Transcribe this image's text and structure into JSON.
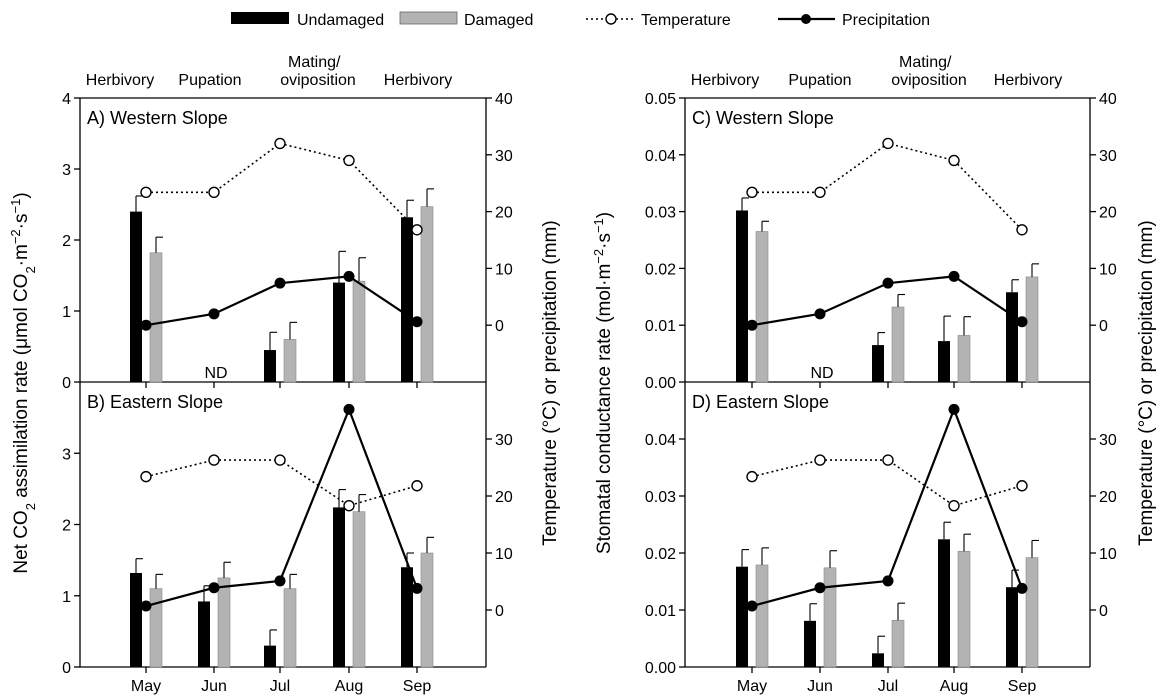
{
  "legend": {
    "undamaged": "Undamaged",
    "damaged": "Damaged",
    "temperature": "Temperature",
    "precipitation": "Precipitation"
  },
  "colors": {
    "undamaged": "#000000",
    "damaged": "#b3b3b3",
    "temperature_marker": "#ffffff",
    "precipitation_marker": "#000000"
  },
  "phases": [
    {
      "lines": [
        "Herbivory"
      ]
    },
    {
      "lines": [
        "Pupation"
      ]
    },
    {
      "lines": [
        "Mating/",
        "oviposition"
      ]
    },
    {
      "lines": [
        "Herbivory"
      ]
    }
  ],
  "nd_label": "ND",
  "left_column": {
    "ylabel": "Net CO2 assimilation rate (μmol CO2·m−2·s−1)",
    "ylabel_parts": [
      "Net CO",
      "2",
      " assimilation rate (μmol CO",
      "2",
      "·m",
      "−2",
      "·s",
      "−1",
      ")"
    ]
  },
  "right_column": {
    "ylabel": "Stomatal conductance rate (mol·m−2·s−1)",
    "ylabel_parts": [
      "Stomatal conductance rate (mol·m",
      "−2",
      "·s",
      "−1",
      ")"
    ]
  },
  "right_axis_label": "Temperature (°C) or precipitation (mm)",
  "chart_data": [
    {
      "type": "bar",
      "title": "A) Western Slope",
      "categories": [
        "May",
        "Jun",
        "Jul",
        "Aug",
        "Sep"
      ],
      "ylim": [
        0,
        4
      ],
      "yticks": [
        "0",
        "1",
        "2",
        "3",
        "4"
      ],
      "y2lim": [
        -10,
        40
      ],
      "y2ticks": [
        "0",
        "10",
        "20",
        "30",
        "40"
      ],
      "series": [
        {
          "name": "Undamaged",
          "values": [
            2.4,
            null,
            0.45,
            1.4,
            2.32
          ],
          "errors": [
            0.22,
            null,
            0.25,
            0.44,
            0.24
          ]
        },
        {
          "name": "Damaged",
          "values": [
            1.82,
            null,
            0.6,
            1.42,
            2.47
          ],
          "errors": [
            0.22,
            null,
            0.24,
            0.33,
            0.25
          ]
        },
        {
          "name": "Temperature",
          "values": [
            23.4,
            23.4,
            32.0,
            29.0,
            16.8
          ]
        },
        {
          "name": "Precipitation",
          "values": [
            0.0,
            2.0,
            7.4,
            8.6,
            0.6
          ]
        }
      ],
      "nd": [
        false,
        true,
        false,
        false,
        false
      ]
    },
    {
      "type": "bar",
      "title": "B) Eastern Slope",
      "categories": [
        "May",
        "Jun",
        "Jul",
        "Aug",
        "Sep"
      ],
      "ylim": [
        0,
        4
      ],
      "yticks": [
        "0",
        "1",
        "2",
        "3"
      ],
      "y2lim": [
        -10,
        40
      ],
      "y2ticks": [
        "0",
        "10",
        "20",
        "30"
      ],
      "series": [
        {
          "name": "Undamaged",
          "values": [
            1.32,
            0.92,
            0.3,
            2.24,
            1.4
          ],
          "errors": [
            0.2,
            0.22,
            0.22,
            0.25,
            0.2
          ]
        },
        {
          "name": "Damaged",
          "values": [
            1.1,
            1.25,
            1.1,
            2.18,
            1.6
          ],
          "errors": [
            0.2,
            0.22,
            0.2,
            0.24,
            0.22
          ]
        },
        {
          "name": "Temperature",
          "values": [
            23.4,
            26.3,
            26.3,
            18.3,
            21.8
          ]
        },
        {
          "name": "Precipitation",
          "values": [
            0.7,
            3.9,
            5.1,
            35.2,
            3.8
          ]
        }
      ],
      "nd": [
        false,
        false,
        false,
        false,
        false
      ]
    },
    {
      "type": "bar",
      "title": "C) Western Slope",
      "categories": [
        "May",
        "Jun",
        "Jul",
        "Aug",
        "Sep"
      ],
      "ylim": [
        0,
        0.05
      ],
      "yticks": [
        "0.00",
        "0.01",
        "0.02",
        "0.03",
        "0.04",
        "0.05"
      ],
      "y2lim": [
        -10,
        40
      ],
      "y2ticks": [
        "0",
        "10",
        "20",
        "30",
        "40"
      ],
      "series": [
        {
          "name": "Undamaged",
          "values": [
            0.0302,
            null,
            0.0065,
            0.0072,
            0.0158
          ],
          "errors": [
            0.0022,
            null,
            0.0022,
            0.0044,
            0.0022
          ]
        },
        {
          "name": "Damaged",
          "values": [
            0.0265,
            null,
            0.0132,
            0.0082,
            0.0185
          ],
          "errors": [
            0.0018,
            null,
            0.0022,
            0.0033,
            0.0023
          ]
        },
        {
          "name": "Temperature",
          "values": [
            23.4,
            23.4,
            32.0,
            29.0,
            16.8
          ]
        },
        {
          "name": "Precipitation",
          "values": [
            0.0,
            2.0,
            7.4,
            8.6,
            0.6
          ]
        }
      ],
      "nd": [
        false,
        true,
        false,
        false,
        false
      ]
    },
    {
      "type": "bar",
      "title": "D) Eastern Slope",
      "categories": [
        "May",
        "Jun",
        "Jul",
        "Aug",
        "Sep"
      ],
      "ylim": [
        0,
        0.05
      ],
      "yticks": [
        "0.00",
        "0.01",
        "0.02",
        "0.03",
        "0.04"
      ],
      "y2lim": [
        -10,
        40
      ],
      "y2ticks": [
        "0",
        "10",
        "20",
        "30"
      ],
      "series": [
        {
          "name": "Undamaged",
          "values": [
            0.0176,
            0.0081,
            0.0024,
            0.0224,
            0.014
          ],
          "errors": [
            0.003,
            0.003,
            0.003,
            0.003,
            0.003
          ]
        },
        {
          "name": "Damaged",
          "values": [
            0.0179,
            0.0174,
            0.0082,
            0.0203,
            0.0192
          ],
          "errors": [
            0.003,
            0.003,
            0.003,
            0.003,
            0.003
          ]
        },
        {
          "name": "Temperature",
          "values": [
            23.4,
            26.3,
            26.3,
            18.3,
            21.8
          ]
        },
        {
          "name": "Precipitation",
          "values": [
            0.7,
            3.9,
            5.1,
            35.2,
            3.8
          ]
        }
      ],
      "nd": [
        false,
        false,
        false,
        false,
        false
      ]
    }
  ]
}
